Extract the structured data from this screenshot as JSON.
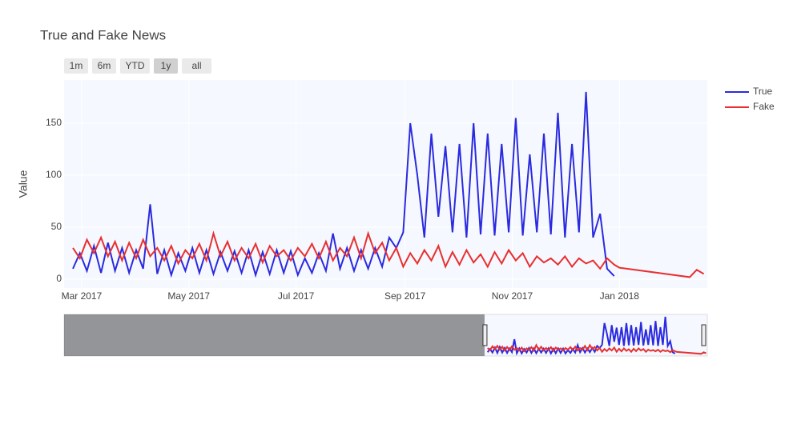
{
  "chart_data": {
    "type": "line",
    "title": "True and Fake News",
    "y_label": "Value",
    "range_buttons": [
      "1m",
      "6m",
      "YTD",
      "1y",
      "all"
    ],
    "active_button": "1y",
    "xlim": [
      "2017-02-19",
      "2018-02-20"
    ],
    "xticks": [
      {
        "value": "2017-03-01",
        "label": "Mar 2017"
      },
      {
        "value": "2017-05-01",
        "label": "May 2017"
      },
      {
        "value": "2017-07-01",
        "label": "Jul 2017"
      },
      {
        "value": "2017-09-01",
        "label": "Sep 2017"
      },
      {
        "value": "2017-11-01",
        "label": "Nov 2017"
      },
      {
        "value": "2018-01-01",
        "label": "Jan 2018"
      }
    ],
    "ylim": [
      -8.5,
      191.5
    ],
    "yticks": [
      0,
      50,
      100,
      150
    ],
    "grid": true,
    "legend_position": "top-right",
    "rangeslider": {
      "range": [
        "2015-03-31",
        "2018-02-20"
      ]
    },
    "series": [
      {
        "name": "True",
        "color": "#2a2ae0",
        "x": [
          "2017-02-24",
          "2017-02-28",
          "2017-03-04",
          "2017-03-08",
          "2017-03-12",
          "2017-03-16",
          "2017-03-20",
          "2017-03-24",
          "2017-03-28",
          "2017-04-01",
          "2017-04-05",
          "2017-04-09",
          "2017-04-13",
          "2017-04-17",
          "2017-04-21",
          "2017-04-25",
          "2017-04-29",
          "2017-05-03",
          "2017-05-07",
          "2017-05-11",
          "2017-05-15",
          "2017-05-19",
          "2017-05-23",
          "2017-05-27",
          "2017-05-31",
          "2017-06-04",
          "2017-06-08",
          "2017-06-12",
          "2017-06-16",
          "2017-06-20",
          "2017-06-24",
          "2017-06-28",
          "2017-07-02",
          "2017-07-06",
          "2017-07-10",
          "2017-07-14",
          "2017-07-18",
          "2017-07-22",
          "2017-07-26",
          "2017-07-30",
          "2017-08-03",
          "2017-08-07",
          "2017-08-11",
          "2017-08-15",
          "2017-08-19",
          "2017-08-23",
          "2017-08-27",
          "2017-08-31",
          "2017-09-04",
          "2017-09-08",
          "2017-09-12",
          "2017-09-16",
          "2017-09-20",
          "2017-09-24",
          "2017-09-28",
          "2017-10-02",
          "2017-10-06",
          "2017-10-10",
          "2017-10-14",
          "2017-10-18",
          "2017-10-22",
          "2017-10-26",
          "2017-10-30",
          "2017-11-03",
          "2017-11-07",
          "2017-11-11",
          "2017-11-15",
          "2017-11-19",
          "2017-11-23",
          "2017-11-27",
          "2017-12-01",
          "2017-12-05",
          "2017-12-09",
          "2017-12-13",
          "2017-12-17",
          "2017-12-21",
          "2017-12-25",
          "2017-12-29"
        ],
        "values": [
          10,
          25,
          8,
          32,
          6,
          35,
          8,
          30,
          6,
          28,
          10,
          72,
          5,
          28,
          4,
          25,
          8,
          30,
          6,
          28,
          5,
          26,
          8,
          27,
          6,
          28,
          4,
          26,
          5,
          28,
          6,
          27,
          4,
          20,
          6,
          25,
          8,
          44,
          10,
          30,
          8,
          28,
          10,
          30,
          12,
          40,
          30,
          45,
          150,
          100,
          40,
          140,
          60,
          128,
          45,
          130,
          40,
          150,
          43,
          140,
          42,
          130,
          45,
          155,
          42,
          120,
          45,
          140,
          43,
          160,
          40,
          130,
          45,
          180,
          40,
          63,
          10,
          3
        ]
      },
      {
        "name": "Fake",
        "color": "#e83030",
        "x": [
          "2017-02-24",
          "2017-02-28",
          "2017-03-04",
          "2017-03-08",
          "2017-03-12",
          "2017-03-16",
          "2017-03-20",
          "2017-03-24",
          "2017-03-28",
          "2017-04-01",
          "2017-04-05",
          "2017-04-09",
          "2017-04-13",
          "2017-04-17",
          "2017-04-21",
          "2017-04-25",
          "2017-04-29",
          "2017-05-03",
          "2017-05-07",
          "2017-05-11",
          "2017-05-15",
          "2017-05-19",
          "2017-05-23",
          "2017-05-27",
          "2017-05-31",
          "2017-06-04",
          "2017-06-08",
          "2017-06-12",
          "2017-06-16",
          "2017-06-20",
          "2017-06-24",
          "2017-06-28",
          "2017-07-02",
          "2017-07-06",
          "2017-07-10",
          "2017-07-14",
          "2017-07-18",
          "2017-07-22",
          "2017-07-26",
          "2017-07-30",
          "2017-08-03",
          "2017-08-07",
          "2017-08-11",
          "2017-08-15",
          "2017-08-19",
          "2017-08-23",
          "2017-08-27",
          "2017-08-31",
          "2017-09-04",
          "2017-09-08",
          "2017-09-12",
          "2017-09-16",
          "2017-09-20",
          "2017-09-24",
          "2017-09-28",
          "2017-10-02",
          "2017-10-06",
          "2017-10-10",
          "2017-10-14",
          "2017-10-18",
          "2017-10-22",
          "2017-10-26",
          "2017-10-30",
          "2017-11-03",
          "2017-11-07",
          "2017-11-11",
          "2017-11-15",
          "2017-11-19",
          "2017-11-23",
          "2017-11-27",
          "2017-12-01",
          "2017-12-05",
          "2017-12-09",
          "2017-12-13",
          "2017-12-17",
          "2017-12-21",
          "2017-12-25",
          "2017-12-29",
          "2018-01-01",
          "2018-02-10",
          "2018-02-14",
          "2018-02-18"
        ],
        "values": [
          30,
          20,
          38,
          25,
          40,
          22,
          36,
          18,
          35,
          20,
          38,
          22,
          30,
          18,
          32,
          15,
          28,
          20,
          34,
          18,
          44,
          22,
          36,
          18,
          30,
          20,
          34,
          16,
          32,
          22,
          28,
          18,
          30,
          22,
          34,
          20,
          36,
          18,
          30,
          22,
          40,
          20,
          44,
          25,
          35,
          18,
          30,
          12,
          25,
          15,
          28,
          18,
          32,
          12,
          26,
          14,
          28,
          16,
          24,
          12,
          26,
          15,
          28,
          18,
          25,
          12,
          22,
          16,
          20,
          14,
          22,
          12,
          20,
          15,
          18,
          10,
          20,
          14,
          11,
          2,
          9,
          5
        ]
      }
    ]
  }
}
